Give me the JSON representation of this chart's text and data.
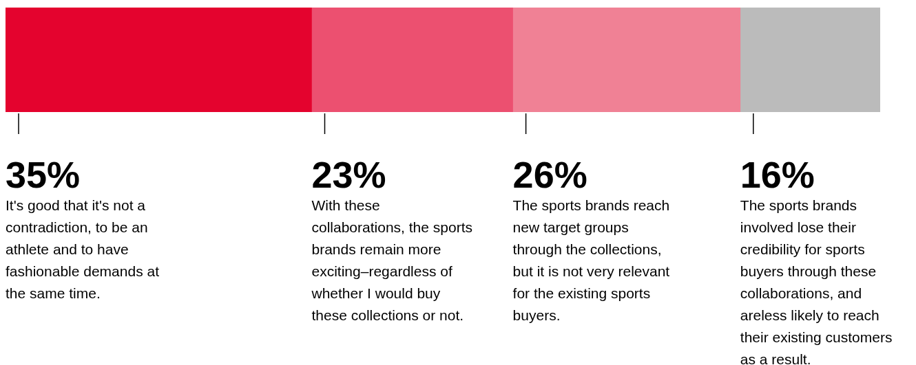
{
  "chart_data": {
    "type": "bar",
    "orientation": "horizontal",
    "stacked": true,
    "tick_labels": false,
    "legend": false,
    "categories": [
      null
    ],
    "series": [
      {
        "color": "#e4032e",
        "values": [
          35
        ],
        "value_labels": [
          "35%"
        ]
      },
      {
        "color": "#ec5070",
        "values": [
          23
        ],
        "value_labels": [
          "23%"
        ]
      },
      {
        "color": "#f08195",
        "values": [
          26
        ],
        "value_labels": [
          "26%"
        ]
      },
      {
        "color": "#bbbbbb",
        "values": [
          16
        ],
        "value_labels": [
          "16%"
        ]
      }
    ],
    "annotations": [
      "It's good that it's not a contradiction, to be an athlete and to have fashionable demands at the same time.",
      "With these collaborations, the sports brands remain more exciting–regardless of whether I would buy these collections or not.",
      "The sports brands reach new target groups through the collections, but it is not very relevant for the existing sports buyers.",
      "The sports brands involved lose their credibility for sports buyers through these collaborations, and areless likely to reach their existing customers as a result."
    ]
  }
}
